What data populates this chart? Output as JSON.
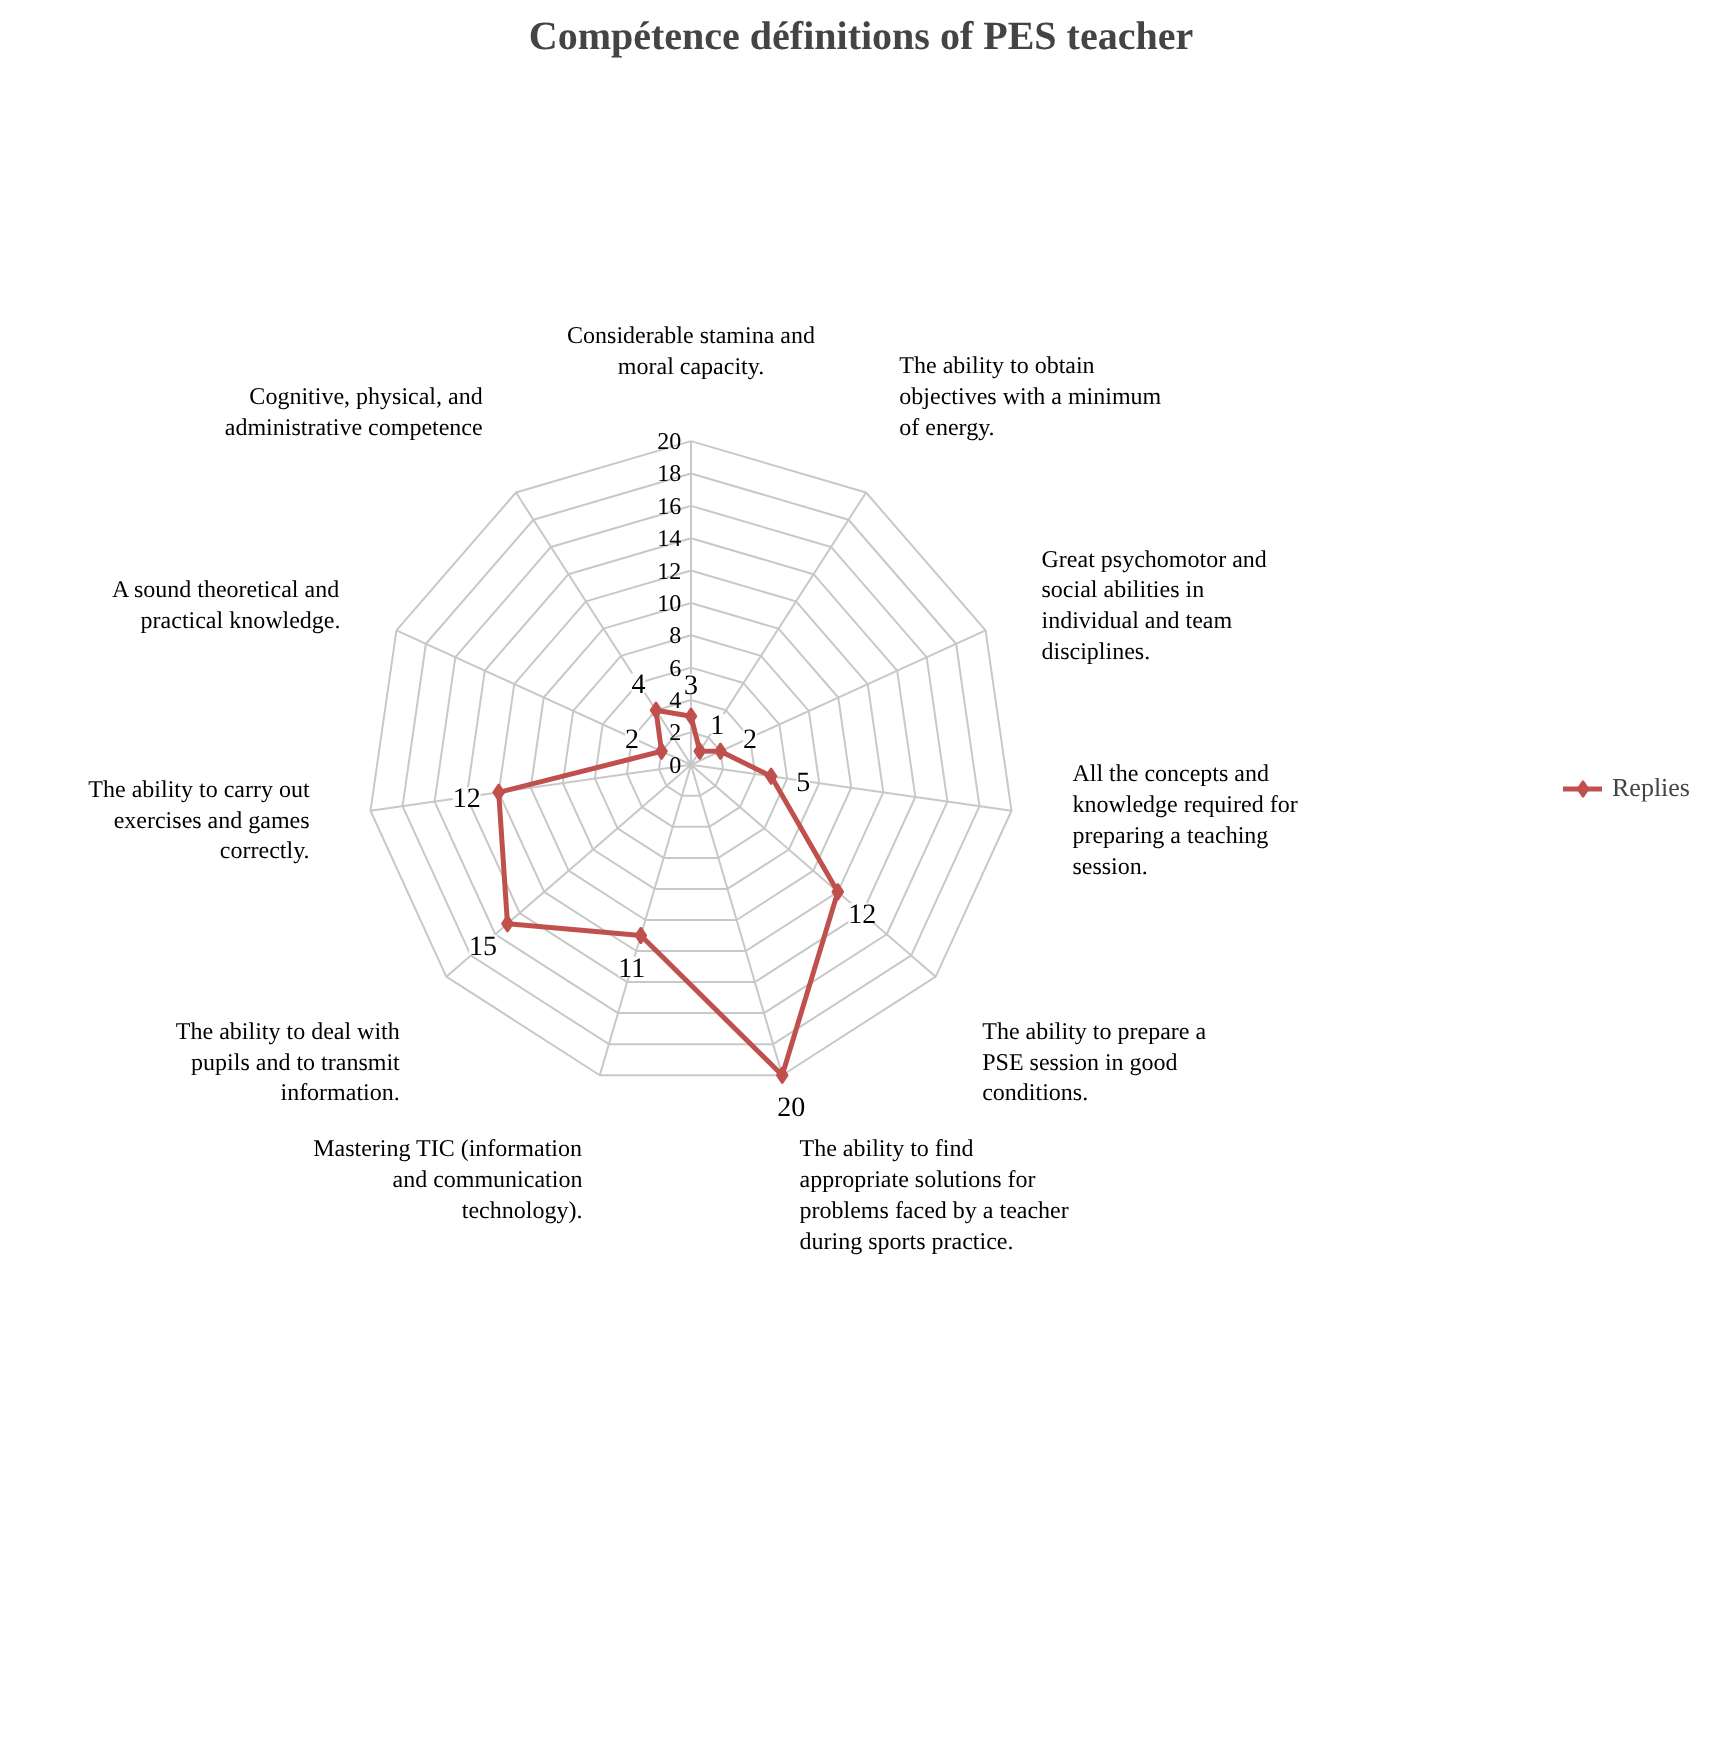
{
  "chart_data": {
    "type": "radar",
    "title": "Compétence définitions of PES teacher",
    "categories": [
      "Considerable stamina and moral capacity.",
      "The ability to obtain objectives with a minimum of energy.",
      "Great psychomotor and social abilities in individual and team disciplines.",
      "All the concepts and knowledge required for preparing a teaching session.",
      "The ability to prepare a PSE session in good conditions.",
      "The ability to find appropriate solutions for problems faced by a teacher during sports practice.",
      "Mastering TIC (information and communication technology).",
      "The ability to deal with pupils and to transmit information.",
      "The ability to carry out exercises and games correctly.",
      "A sound theoretical and practical knowledge.",
      "Cognitive, physical, and administrative competence"
    ],
    "series": [
      {
        "name": "Replies",
        "color": "#c0504d",
        "values": [
          3,
          1,
          2,
          5,
          12,
          20,
          11,
          15,
          12,
          2,
          4
        ]
      }
    ],
    "ylim": [
      0,
      20
    ],
    "yticks": [
      0,
      2,
      4,
      6,
      8,
      10,
      12,
      14,
      16,
      18,
      20
    ],
    "grid": true,
    "legend": "right",
    "marker": "diamond",
    "data_labels": true
  }
}
